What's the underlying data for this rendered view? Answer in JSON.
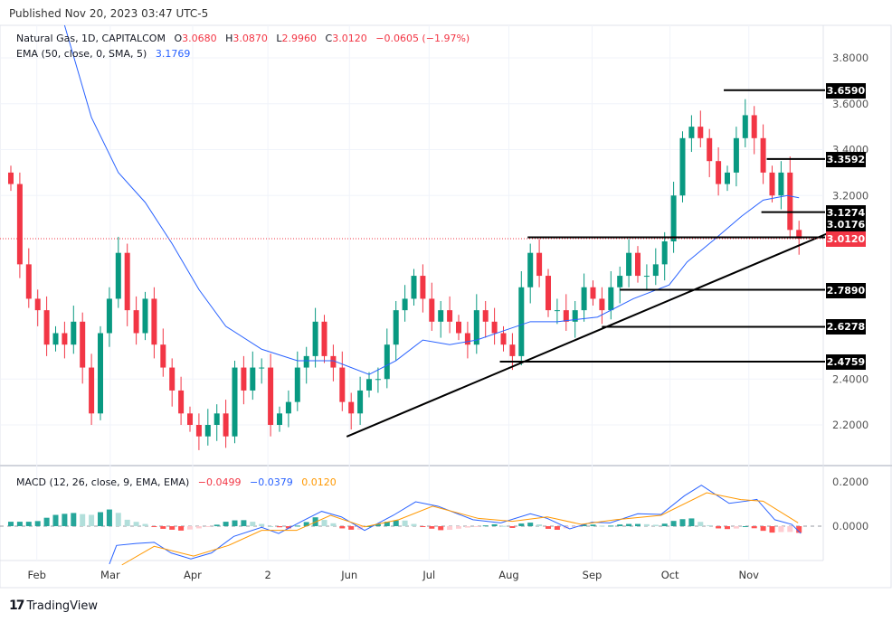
{
  "header": {
    "published_label": "Published",
    "published_date": "Nov 20, 2023 03:47 UTC-5"
  },
  "legend": {
    "symbol": "Natural Gas, 1D, CAPITALCOM",
    "o_label": "O",
    "o": "3.0680",
    "h_label": "H",
    "h": "3.0870",
    "l_label": "L",
    "l": "2.9960",
    "c_label": "C",
    "c": "3.0120",
    "change": "−0.0605 (−1.97%)",
    "ema_label": "EMA (50, close, 0, SMA, 5)",
    "ema_value": "3.1769",
    "macd_label": "MACD (12, 26, close, 9, EMA, EMA)",
    "macd_hist": "−0.0499",
    "macd_line": "−0.0379",
    "macd_signal": "0.0120"
  },
  "footer": {
    "logo_text": "TradingView"
  },
  "colors": {
    "up": "#089981",
    "down": "#f23645",
    "ema": "#2962ff",
    "signal": "#ff9800",
    "hist_up_strong": "#26a69a",
    "hist_up_weak": "#b2dfdb",
    "hist_down_strong": "#ff5252",
    "hist_down_weak": "#ffcdd2"
  },
  "chart_data": {
    "type": "candlestick",
    "title": "Natural Gas, 1D, CAPITALCOM",
    "x_unit": "bar index",
    "ylim": [
      2.1,
      3.85
    ],
    "y_ticks": [
      "3.8000",
      "3.6000",
      "3.4000",
      "3.2000",
      "2.4000",
      "2.2000"
    ],
    "y_tick_values": [
      3.8,
      3.6,
      3.4,
      3.2,
      2.4,
      2.2
    ],
    "x_ticks": [
      {
        "label": "Feb",
        "t": 2.9
      },
      {
        "label": "Mar",
        "t": 11.1
      },
      {
        "label": "Apr",
        "t": 20.3
      },
      {
        "label": "2",
        "t": 28.7
      },
      {
        "label": "Jun",
        "t": 37.8
      },
      {
        "label": "Jul",
        "t": 46.7
      },
      {
        "label": "Aug",
        "t": 55.6
      },
      {
        "label": "Sep",
        "t": 64.9
      },
      {
        "label": "Oct",
        "t": 73.6
      },
      {
        "label": "Nov",
        "t": 82.4
      }
    ],
    "closes": [
      3.25,
      2.9,
      2.75,
      2.7,
      2.55,
      2.6,
      2.55,
      2.65,
      2.45,
      2.25,
      2.6,
      2.75,
      2.95,
      2.7,
      2.6,
      2.75,
      2.55,
      2.45,
      2.35,
      2.25,
      2.2,
      2.15,
      2.2,
      2.25,
      2.15,
      2.45,
      2.35,
      2.45,
      2.45,
      2.2,
      2.25,
      2.3,
      2.45,
      2.5,
      2.65,
      2.5,
      2.45,
      2.3,
      2.25,
      2.35,
      2.4,
      2.4,
      2.55,
      2.7,
      2.75,
      2.85,
      2.75,
      2.65,
      2.7,
      2.65,
      2.6,
      2.55,
      2.7,
      2.65,
      2.6,
      2.55,
      2.5,
      2.8,
      2.95,
      2.85,
      2.7,
      2.7,
      2.65,
      2.7,
      2.8,
      2.75,
      2.7,
      2.8,
      2.85,
      2.95,
      2.85,
      2.85,
      2.9,
      3.0,
      3.2,
      3.45,
      3.5,
      3.45,
      3.35,
      3.25,
      3.3,
      3.45,
      3.55,
      3.45,
      3.3,
      3.2,
      3.3,
      3.05,
      3.012
    ],
    "ema": [
      [
        6,
        4.03
      ],
      [
        9,
        3.54
      ],
      [
        12,
        3.3
      ],
      [
        15,
        3.17
      ],
      [
        18,
        2.99
      ],
      [
        21,
        2.79
      ],
      [
        24,
        2.63
      ],
      [
        28,
        2.53
      ],
      [
        32,
        2.48
      ],
      [
        36,
        2.48
      ],
      [
        40,
        2.42
      ],
      [
        43,
        2.48
      ],
      [
        46,
        2.57
      ],
      [
        49,
        2.55
      ],
      [
        52,
        2.57
      ],
      [
        55,
        2.61
      ],
      [
        58,
        2.65
      ],
      [
        61,
        2.65
      ],
      [
        65.5,
        2.67
      ],
      [
        69.5,
        2.75
      ],
      [
        73.5,
        2.81
      ],
      [
        75.5,
        2.91
      ],
      [
        78.6,
        3.01
      ],
      [
        81.6,
        3.11
      ],
      [
        84,
        3.18
      ],
      [
        86.7,
        3.2
      ],
      [
        88,
        3.19
      ]
    ],
    "levels": [
      {
        "label": "3.6590",
        "value": 3.659,
        "from": 79.6
      },
      {
        "label": "3.3592",
        "value": 3.3592,
        "from": 84.4
      },
      {
        "label": "3.1274",
        "value": 3.1274,
        "from": 83.8
      },
      {
        "label": "3.0176",
        "value": 3.0176,
        "from": 57.7
      },
      {
        "label": "2.7890",
        "value": 2.789,
        "from": 68
      },
      {
        "label": "2.6278",
        "value": 2.6278,
        "from": 66
      },
      {
        "label": "2.4759",
        "value": 2.4759,
        "from": 54.6
      }
    ],
    "current_price": {
      "label": "3.0120",
      "value": 3.012
    },
    "trendline": [
      [
        37.5,
        2.149
      ],
      [
        91.2,
        3.035
      ]
    ],
    "macd": {
      "ylim": [
        -0.2,
        0.22
      ],
      "y_ticks": [
        "0.2000",
        "0.0000"
      ],
      "y_tick_values": [
        0.2,
        0
      ],
      "macd_line": [
        [
          11,
          -0.171
        ],
        [
          11.8,
          -0.087
        ],
        [
          14,
          -0.078
        ],
        [
          16,
          -0.073
        ],
        [
          17.9,
          -0.121
        ],
        [
          20.1,
          -0.148
        ],
        [
          22.4,
          -0.121
        ],
        [
          24.9,
          -0.046
        ],
        [
          28,
          -0.005
        ],
        [
          29.9,
          -0.033
        ],
        [
          32.5,
          0.022
        ],
        [
          34.7,
          0.067
        ],
        [
          36.9,
          0.042
        ],
        [
          39.5,
          -0.019
        ],
        [
          42.7,
          0.049
        ],
        [
          45.2,
          0.11
        ],
        [
          47.7,
          0.09
        ],
        [
          51.6,
          0.029
        ],
        [
          54.7,
          0.015
        ],
        [
          58,
          0.056
        ],
        [
          59.9,
          0.035
        ],
        [
          62.4,
          -0.012
        ],
        [
          64.9,
          0.018
        ],
        [
          66.9,
          0.015
        ],
        [
          70,
          0.056
        ],
        [
          72.6,
          0.053
        ],
        [
          75.2,
          0.137
        ],
        [
          77.1,
          0.185
        ],
        [
          80.2,
          0.103
        ],
        [
          82.1,
          0.113
        ],
        [
          83.3,
          0.121
        ],
        [
          85.3,
          0.029
        ],
        [
          87.2,
          0.008
        ],
        [
          88.2,
          -0.033
        ]
      ],
      "signal_line": [
        [
          12.4,
          -0.175
        ],
        [
          16,
          -0.091
        ],
        [
          20.4,
          -0.135
        ],
        [
          24.3,
          -0.087
        ],
        [
          28,
          -0.019
        ],
        [
          31.9,
          -0.019
        ],
        [
          35.7,
          0.049
        ],
        [
          39.5,
          -0.003
        ],
        [
          43.3,
          0.029
        ],
        [
          47.1,
          0.09
        ],
        [
          52.2,
          0.035
        ],
        [
          56,
          0.022
        ],
        [
          59.9,
          0.042
        ],
        [
          63.7,
          0.008
        ],
        [
          67.5,
          0.029
        ],
        [
          72.6,
          0.049
        ],
        [
          77.7,
          0.151
        ],
        [
          81.5,
          0.12
        ],
        [
          84,
          0.113
        ],
        [
          87.9,
          0.015
        ]
      ],
      "histogram": [
        [
          0,
          0.02
        ],
        [
          2.8,
          0.02
        ],
        [
          4.8,
          0.05
        ],
        [
          6.9,
          0.06
        ],
        [
          8.9,
          0.05
        ],
        [
          11.4,
          0.08
        ],
        [
          12.9,
          0.03
        ],
        [
          15,
          0.01
        ],
        [
          16.5,
          -0.01
        ],
        [
          19,
          -0.02
        ],
        [
          21,
          -0.01
        ],
        [
          22.5,
          0
        ],
        [
          24,
          0.02
        ],
        [
          25.6,
          0.03
        ],
        [
          27,
          0.02
        ],
        [
          29,
          0
        ],
        [
          31,
          -0.01
        ],
        [
          32.6,
          0.01
        ],
        [
          34,
          0.04
        ],
        [
          35.7,
          0.02
        ],
        [
          37,
          -0.01
        ],
        [
          38.7,
          -0.02
        ],
        [
          40,
          0
        ],
        [
          42,
          0.02
        ],
        [
          43.7,
          0.03
        ],
        [
          45,
          0.01
        ],
        [
          46.8,
          -0.01
        ],
        [
          48.3,
          -0.02
        ],
        [
          50.3,
          -0.01
        ],
        [
          52.3,
          0
        ],
        [
          54.3,
          0.01
        ],
        [
          55.9,
          -0.01
        ],
        [
          57.4,
          0.02
        ],
        [
          58.9,
          0.01
        ],
        [
          60.4,
          -0.02
        ],
        [
          62,
          -0.01
        ],
        [
          64.4,
          0.01
        ],
        [
          66.5,
          0
        ],
        [
          68.5,
          0.01
        ],
        [
          70.5,
          0.01
        ],
        [
          72.5,
          0.005
        ],
        [
          74.5,
          0.03
        ],
        [
          76,
          0.035
        ],
        [
          77.6,
          0.01
        ],
        [
          79,
          -0.01
        ],
        [
          80.6,
          -0.015
        ],
        [
          82,
          0
        ],
        [
          83.6,
          -0.015
        ],
        [
          84.6,
          -0.03
        ],
        [
          86.7,
          -0.025
        ],
        [
          88,
          -0.03
        ]
      ]
    }
  }
}
